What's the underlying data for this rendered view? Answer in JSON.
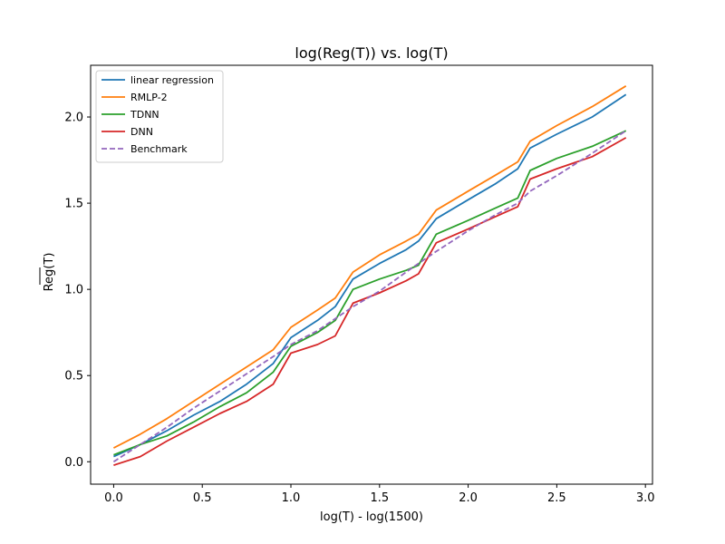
{
  "chart_data": {
    "type": "line",
    "title": "log(Reg(T)) vs. log(T)",
    "xlabel": "log(T) - log(1500)",
    "ylabel": "Reg(T)",
    "xlim": [
      -0.13,
      3.04
    ],
    "ylim": [
      -0.13,
      2.3
    ],
    "xticks": [
      0.0,
      0.5,
      1.0,
      1.5,
      2.0,
      2.5,
      3.0
    ],
    "xtick_labels": [
      "0.0",
      "0.5",
      "1.0",
      "1.5",
      "2.0",
      "2.5",
      "3.0"
    ],
    "yticks": [
      0.0,
      0.5,
      1.0,
      1.5,
      2.0
    ],
    "ytick_labels": [
      "0.0",
      "0.5",
      "1.0",
      "1.5",
      "2.0"
    ],
    "grid": false,
    "legend_position": "upper-left",
    "series": [
      {
        "name": "linear regression",
        "color": "#1f77b4",
        "dash": "solid",
        "x": [
          0.0,
          0.15,
          0.3,
          0.45,
          0.6,
          0.75,
          0.9,
          1.0,
          1.15,
          1.25,
          1.35,
          1.5,
          1.65,
          1.72,
          1.82,
          2.0,
          2.15,
          2.28,
          2.35,
          2.5,
          2.7,
          2.89
        ],
        "y": [
          0.03,
          0.1,
          0.18,
          0.27,
          0.35,
          0.45,
          0.57,
          0.72,
          0.82,
          0.9,
          1.06,
          1.15,
          1.23,
          1.28,
          1.41,
          1.52,
          1.61,
          1.7,
          1.82,
          1.9,
          2.0,
          2.13
        ]
      },
      {
        "name": "RMLP-2",
        "color": "#ff7f0e",
        "dash": "solid",
        "x": [
          0.0,
          0.15,
          0.3,
          0.45,
          0.6,
          0.75,
          0.9,
          1.0,
          1.15,
          1.25,
          1.35,
          1.5,
          1.65,
          1.72,
          1.82,
          2.0,
          2.15,
          2.28,
          2.35,
          2.5,
          2.7,
          2.89
        ],
        "y": [
          0.08,
          0.16,
          0.25,
          0.35,
          0.45,
          0.55,
          0.65,
          0.78,
          0.88,
          0.95,
          1.1,
          1.2,
          1.28,
          1.32,
          1.46,
          1.57,
          1.66,
          1.74,
          1.86,
          1.95,
          2.06,
          2.18
        ]
      },
      {
        "name": "TDNN",
        "color": "#2ca02c",
        "dash": "solid",
        "x": [
          0.0,
          0.15,
          0.3,
          0.45,
          0.6,
          0.75,
          0.9,
          1.0,
          1.15,
          1.25,
          1.35,
          1.5,
          1.65,
          1.72,
          1.82,
          2.0,
          2.15,
          2.28,
          2.35,
          2.5,
          2.7,
          2.89
        ],
        "y": [
          0.04,
          0.1,
          0.15,
          0.23,
          0.32,
          0.4,
          0.52,
          0.67,
          0.75,
          0.82,
          1.0,
          1.06,
          1.11,
          1.14,
          1.32,
          1.4,
          1.47,
          1.53,
          1.69,
          1.76,
          1.83,
          1.92
        ]
      },
      {
        "name": "DNN",
        "color": "#d62728",
        "dash": "solid",
        "x": [
          0.0,
          0.15,
          0.3,
          0.45,
          0.6,
          0.75,
          0.9,
          1.0,
          1.15,
          1.25,
          1.35,
          1.5,
          1.65,
          1.72,
          1.82,
          2.0,
          2.15,
          2.28,
          2.35,
          2.5,
          2.7,
          2.89
        ],
        "y": [
          -0.02,
          0.03,
          0.12,
          0.2,
          0.28,
          0.35,
          0.45,
          0.63,
          0.68,
          0.73,
          0.92,
          0.98,
          1.05,
          1.09,
          1.27,
          1.35,
          1.42,
          1.48,
          1.64,
          1.7,
          1.77,
          1.88
        ]
      },
      {
        "name": "Benchmark",
        "color": "#9467bd",
        "dash": "dashed",
        "x": [
          0.0,
          0.15,
          0.3,
          0.45,
          0.6,
          0.75,
          0.9,
          1.0,
          1.15,
          1.25,
          1.35,
          1.5,
          1.65,
          1.72,
          1.82,
          2.0,
          2.15,
          2.28,
          2.35,
          2.5,
          2.7,
          2.89
        ],
        "y": [
          0.0,
          0.1,
          0.2,
          0.31,
          0.41,
          0.51,
          0.61,
          0.68,
          0.76,
          0.83,
          0.9,
          0.99,
          1.1,
          1.15,
          1.22,
          1.34,
          1.43,
          1.5,
          1.57,
          1.66,
          1.79,
          1.92
        ]
      }
    ]
  }
}
